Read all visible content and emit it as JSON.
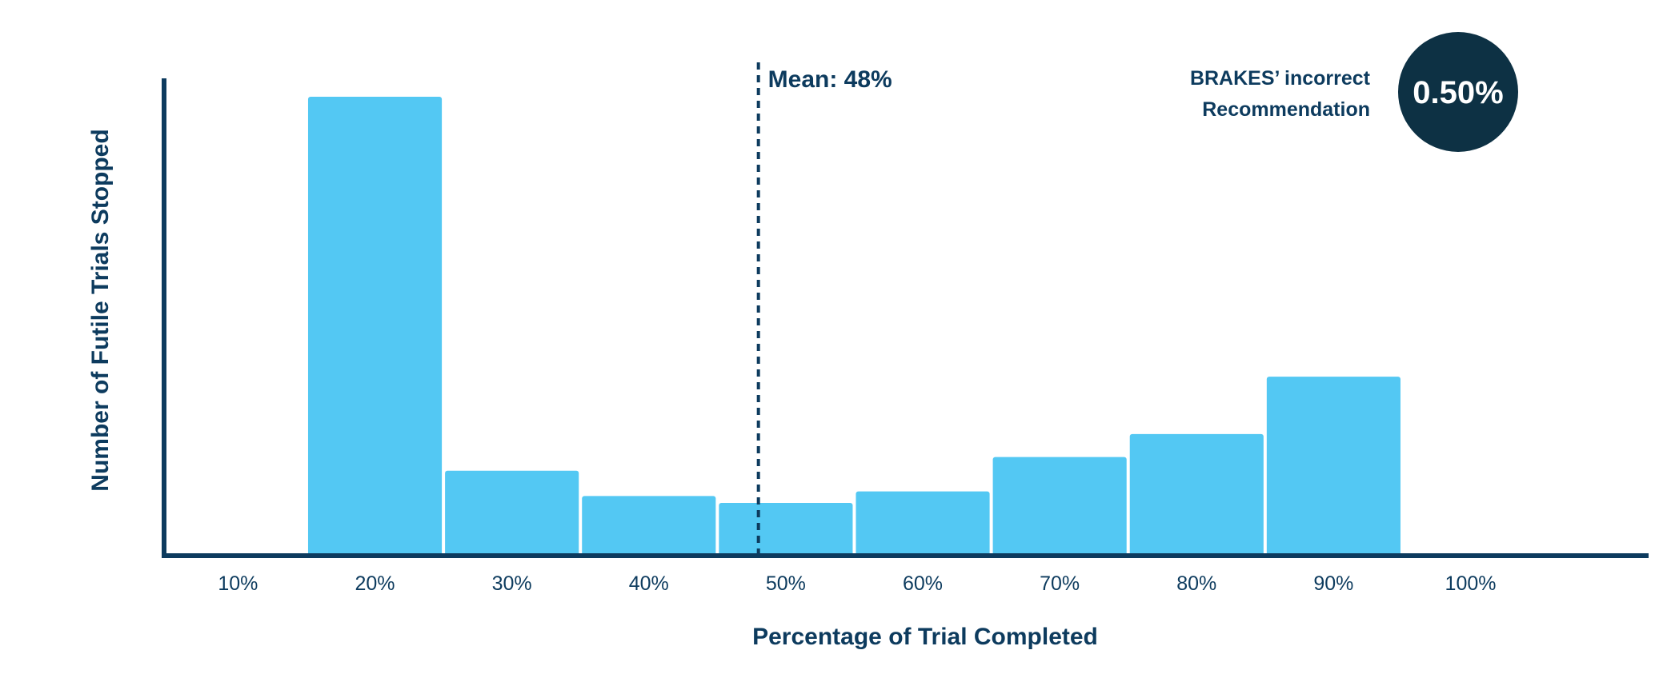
{
  "chart_data": {
    "type": "bar",
    "title": "",
    "xlabel": "Percentage of Trial Completed",
    "ylabel": "Number of Futile Trials Stopped",
    "categories": [
      "20%",
      "30%",
      "40%",
      "50%",
      "60%",
      "70%",
      "80%",
      "90%"
    ],
    "bin_centers": [
      20,
      30,
      40,
      50,
      60,
      70,
      80,
      90
    ],
    "bin_width": 10,
    "values": [
      100,
      18.5,
      13,
      11.5,
      14,
      21.5,
      26.5,
      39
    ],
    "xlim": [
      4.6,
      113
    ],
    "ylim": [
      0,
      104
    ],
    "x_ticks": [
      10,
      20,
      30,
      40,
      50,
      60,
      70,
      80,
      90,
      100
    ],
    "x_tick_labels": [
      "10%",
      "20%",
      "30%",
      "40%",
      "50%",
      "60%",
      "70%",
      "80%",
      "90%",
      "100%"
    ],
    "y_ticks_shown": false,
    "grid": false,
    "bar_color": "#53c8f3",
    "axis_color": "#0d3b5e",
    "mean_line": {
      "x": 48,
      "label": "Mean: 48%",
      "style": "dashed"
    },
    "callout": {
      "label_line1": "BRAKES’ incorrect",
      "label_line2": "Recommendation",
      "value": "0.50%",
      "badge_color": "#0d3144"
    }
  }
}
